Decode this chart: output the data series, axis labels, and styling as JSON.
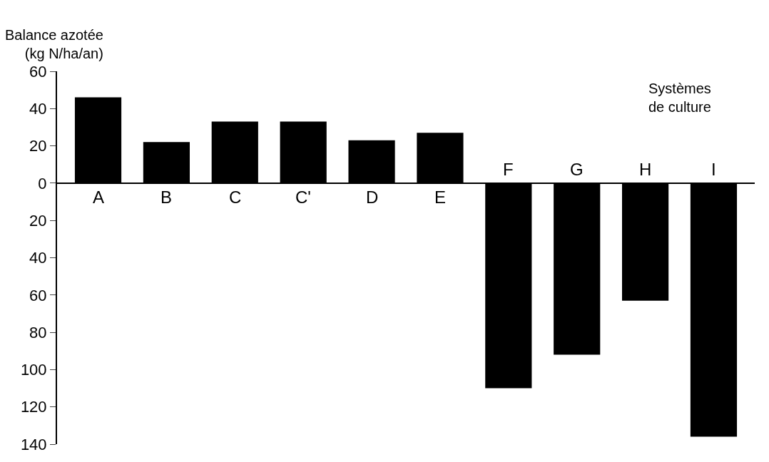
{
  "chart_data": {
    "type": "bar",
    "ylabel": "Balance azotée\n(kg N/ha/an)",
    "xlabel": "Systèmes\nde culture",
    "categories": [
      "A",
      "B",
      "C",
      "C'",
      "D",
      "E",
      "F",
      "G",
      "H",
      "I"
    ],
    "values": [
      46,
      22,
      33,
      33,
      23,
      27,
      -110,
      -92,
      -63,
      -136
    ],
    "color": "#000000",
    "ylim": [
      -140,
      60
    ],
    "yticks": [
      60,
      40,
      20,
      0,
      {
        "value": -20,
        "label": "20"
      },
      {
        "value": -40,
        "label": "40"
      },
      {
        "value": -60,
        "label": "60"
      },
      {
        "value": -80,
        "label": "80"
      },
      {
        "value": -100,
        "label": "100"
      },
      {
        "value": -120,
        "label": "120"
      },
      {
        "value": -140,
        "label": "140"
      }
    ]
  }
}
